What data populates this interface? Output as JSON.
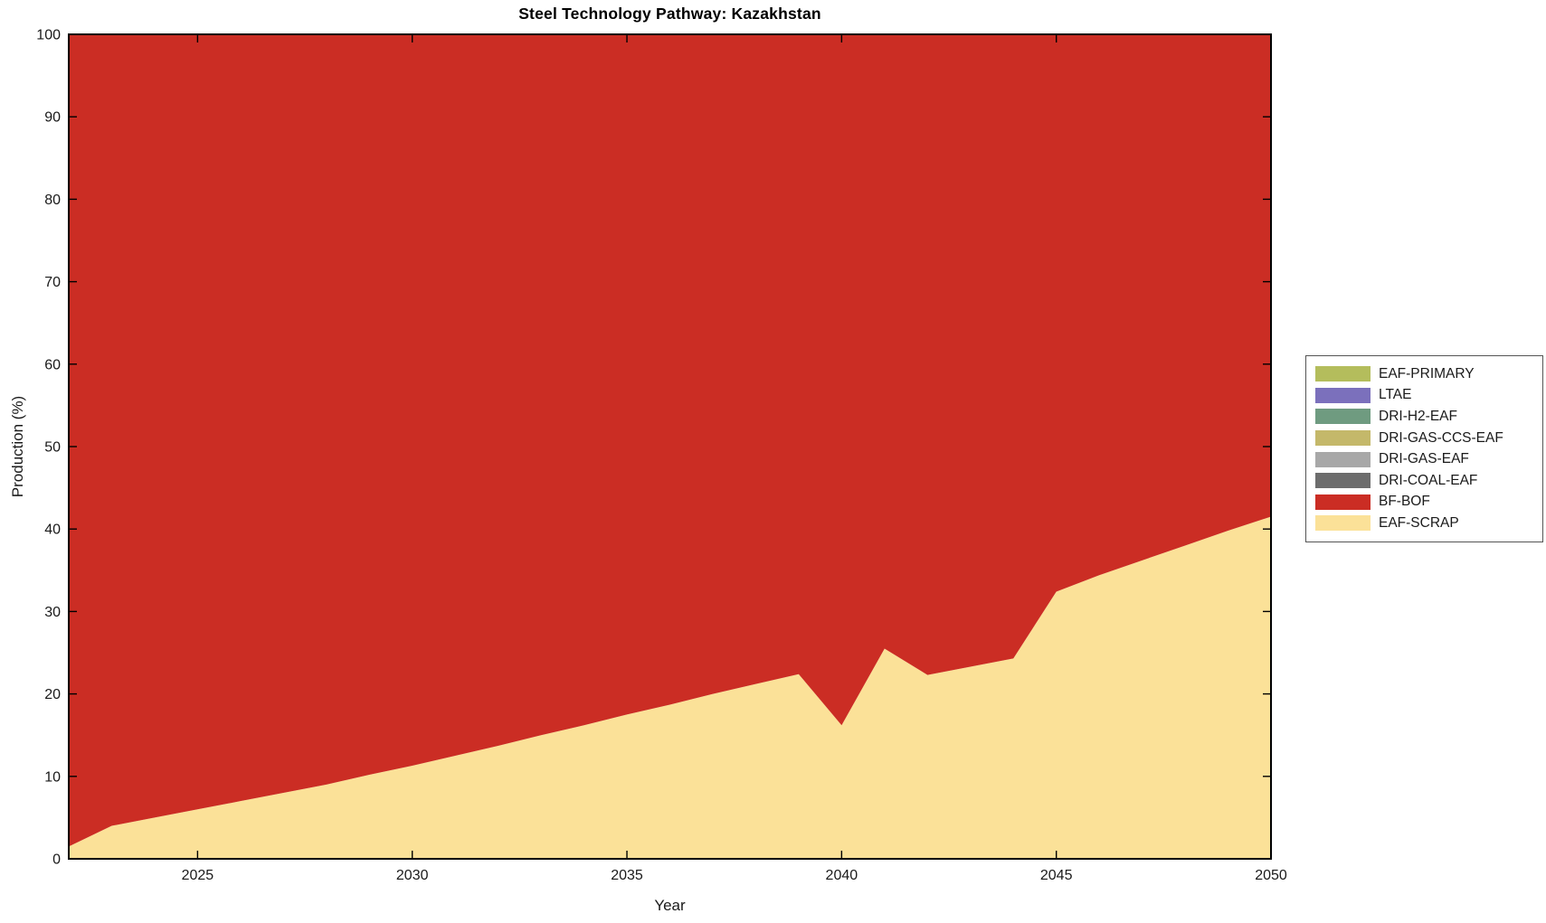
{
  "title": "Steel Technology Pathway: Kazakhstan",
  "axes": {
    "xlabel": "Year",
    "ylabel": "Production (%)",
    "x_ticks": [
      2025,
      2030,
      2035,
      2040,
      2045,
      2050
    ],
    "y_ticks": [
      0,
      10,
      20,
      30,
      40,
      50,
      60,
      70,
      80,
      90,
      100
    ]
  },
  "legend": {
    "items": [
      {
        "label": "EAF-PRIMARY",
        "color": "#b4bd5c"
      },
      {
        "label": "LTAE",
        "color": "#7b70bc"
      },
      {
        "label": "DRI-H2-EAF",
        "color": "#6f9b80"
      },
      {
        "label": "DRI-GAS-CCS-EAF",
        "color": "#c4b86a"
      },
      {
        "label": "DRI-GAS-EAF",
        "color": "#a8a8a8"
      },
      {
        "label": "DRI-COAL-EAF",
        "color": "#6d6d6d"
      },
      {
        "label": "BF-BOF",
        "color": "#cb2d24"
      },
      {
        "label": "EAF-SCRAP",
        "color": "#fbe198"
      }
    ]
  },
  "chart_data": {
    "type": "area",
    "stacked": true,
    "title": "Steel Technology Pathway: Kazakhstan",
    "xlabel": "Year",
    "ylabel": "Production (%)",
    "xlim": [
      2022,
      2050
    ],
    "ylim": [
      0,
      100
    ],
    "grid": false,
    "legend_position": "outside-right",
    "x": [
      2022,
      2023,
      2024,
      2025,
      2026,
      2027,
      2028,
      2029,
      2030,
      2031,
      2032,
      2033,
      2034,
      2035,
      2036,
      2037,
      2038,
      2039,
      2040,
      2041,
      2042,
      2043,
      2044,
      2045,
      2046,
      2047,
      2048,
      2049,
      2050
    ],
    "series": [
      {
        "name": "EAF-SCRAP",
        "color": "#fbe198",
        "values": [
          1.5,
          4,
          5,
          6,
          7,
          8,
          9,
          10.2,
          11.3,
          12.5,
          13.7,
          15,
          16.2,
          17.5,
          18.7,
          20,
          21.2,
          22.4,
          16.2,
          25.5,
          22.3,
          23.3,
          24.3,
          32.4,
          34.4,
          36.2,
          38,
          39.8,
          41.5
        ]
      },
      {
        "name": "BF-BOF",
        "color": "#cb2d24",
        "values": [
          98.5,
          96,
          95,
          94,
          93,
          92,
          91,
          89.8,
          88.7,
          87.5,
          86.3,
          85,
          83.8,
          82.5,
          81.3,
          80,
          78.8,
          77.6,
          83.8,
          74.5,
          77.7,
          76.7,
          75.7,
          67.6,
          65.6,
          63.8,
          62,
          60.2,
          58.5
        ]
      },
      {
        "name": "DRI-COAL-EAF",
        "color": "#6d6d6d",
        "values": [
          0,
          0,
          0,
          0,
          0,
          0,
          0,
          0,
          0,
          0,
          0,
          0,
          0,
          0,
          0,
          0,
          0,
          0,
          0,
          0,
          0,
          0,
          0,
          0,
          0,
          0,
          0,
          0,
          0
        ]
      },
      {
        "name": "DRI-GAS-EAF",
        "color": "#a8a8a8",
        "values": [
          0,
          0,
          0,
          0,
          0,
          0,
          0,
          0,
          0,
          0,
          0,
          0,
          0,
          0,
          0,
          0,
          0,
          0,
          0,
          0,
          0,
          0,
          0,
          0,
          0,
          0,
          0,
          0,
          0
        ]
      },
      {
        "name": "DRI-GAS-CCS-EAF",
        "color": "#c4b86a",
        "values": [
          0,
          0,
          0,
          0,
          0,
          0,
          0,
          0,
          0,
          0,
          0,
          0,
          0,
          0,
          0,
          0,
          0,
          0,
          0,
          0,
          0,
          0,
          0,
          0,
          0,
          0,
          0,
          0,
          0
        ]
      },
      {
        "name": "DRI-H2-EAF",
        "color": "#6f9b80",
        "values": [
          0,
          0,
          0,
          0,
          0,
          0,
          0,
          0,
          0,
          0,
          0,
          0,
          0,
          0,
          0,
          0,
          0,
          0,
          0,
          0,
          0,
          0,
          0,
          0,
          0,
          0,
          0,
          0,
          0
        ]
      },
      {
        "name": "LTAE",
        "color": "#7b70bc",
        "values": [
          0,
          0,
          0,
          0,
          0,
          0,
          0,
          0,
          0,
          0,
          0,
          0,
          0,
          0,
          0,
          0,
          0,
          0,
          0,
          0,
          0,
          0,
          0,
          0,
          0,
          0,
          0,
          0,
          0
        ]
      },
      {
        "name": "EAF-PRIMARY",
        "color": "#b4bd5c",
        "values": [
          0,
          0,
          0,
          0,
          0,
          0,
          0,
          0,
          0,
          0,
          0,
          0,
          0,
          0,
          0,
          0,
          0,
          0,
          0,
          0,
          0,
          0,
          0,
          0,
          0,
          0,
          0,
          0,
          0
        ]
      }
    ]
  }
}
